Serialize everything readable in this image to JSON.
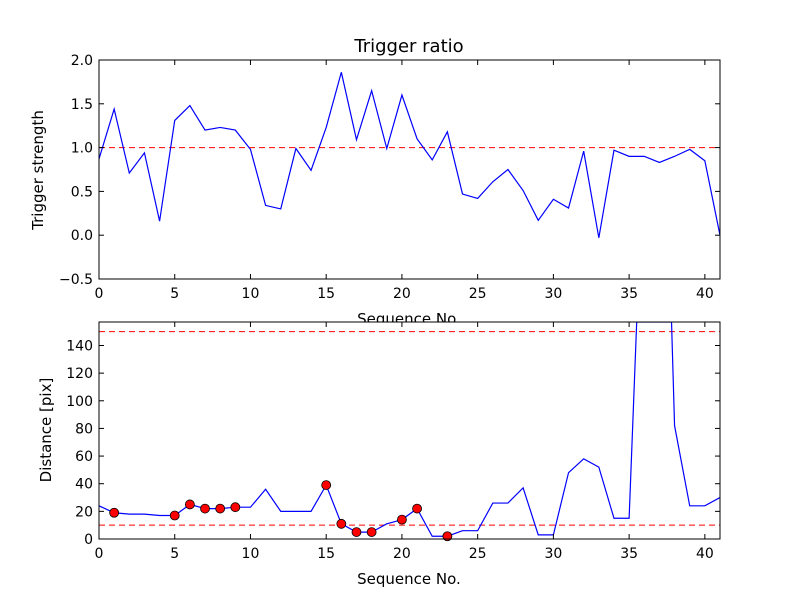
{
  "chart_data": [
    {
      "type": "line",
      "title": "Trigger ratio",
      "xlabel": "Sequence No.",
      "ylabel": "Trigger strength",
      "xlim": [
        0,
        41
      ],
      "ylim": [
        -0.5,
        2.0
      ],
      "xticks": [
        "0",
        "5",
        "10",
        "15",
        "20",
        "25",
        "30",
        "35",
        "40"
      ],
      "yticks": [
        "−0.5",
        "0.0",
        "0.5",
        "1.0",
        "1.5",
        "2.0"
      ],
      "threshold": 1.0,
      "line_color": "#0000ff",
      "threshold_color": "#ff0000",
      "series": [
        {
          "x": [
            0,
            1,
            2,
            3,
            4,
            5,
            6,
            7,
            8,
            9,
            10,
            11,
            12,
            13,
            14,
            15,
            16,
            17,
            18,
            19,
            20,
            21,
            22,
            23,
            24,
            25,
            26,
            27,
            28,
            29,
            30,
            31,
            32,
            33,
            34,
            35,
            36,
            37,
            38,
            39,
            40,
            41
          ],
          "values": [
            0.87,
            1.44,
            0.71,
            0.94,
            0.16,
            1.31,
            1.48,
            1.2,
            1.23,
            1.2,
            0.98,
            0.34,
            0.3,
            0.99,
            0.74,
            1.23,
            1.86,
            1.09,
            1.65,
            0.99,
            1.6,
            1.1,
            0.86,
            1.18,
            0.47,
            0.42,
            0.61,
            0.75,
            0.51,
            0.17,
            0.41,
            0.31,
            0.96,
            -0.03,
            0.97,
            0.9,
            0.9,
            0.83,
            0.9,
            0.98,
            0.85,
            0.0
          ]
        }
      ]
    },
    {
      "type": "line",
      "title": "",
      "xlabel": "Sequence No.",
      "ylabel": "Distance [pix]",
      "xlim": [
        0,
        41
      ],
      "ylim": [
        0,
        157
      ],
      "xticks": [
        "0",
        "5",
        "10",
        "15",
        "20",
        "25",
        "30",
        "35",
        "40"
      ],
      "yticks": [
        "0",
        "20",
        "40",
        "60",
        "80",
        "100",
        "120",
        "140"
      ],
      "thresholds": [
        10,
        150
      ],
      "line_color": "#0000ff",
      "threshold_color": "#ff0000",
      "marker_color": "#ff0000",
      "series": [
        {
          "x": [
            0,
            1,
            2,
            3,
            4,
            5,
            6,
            7,
            8,
            9,
            10,
            11,
            12,
            13,
            14,
            15,
            16,
            17,
            18,
            19,
            20,
            21,
            22,
            23,
            24,
            25,
            26,
            27,
            28,
            29,
            30,
            31,
            32,
            33,
            34,
            35,
            35.5,
            37.8,
            38,
            39,
            40,
            41
          ],
          "values": [
            24,
            19,
            18,
            18,
            17,
            17,
            25,
            22,
            22,
            23,
            23,
            36,
            20,
            20,
            20,
            39,
            11,
            5,
            5,
            11,
            14,
            22,
            2,
            2,
            6,
            6,
            26,
            26,
            37,
            3,
            3,
            48,
            58,
            52,
            15,
            15,
            157,
            157,
            82,
            24,
            24,
            30
          ]
        }
      ],
      "highlighted_points": {
        "x": [
          1,
          5,
          6,
          7,
          8,
          9,
          15,
          16,
          17,
          18,
          20,
          21,
          23
        ],
        "values": [
          19,
          17,
          25,
          22,
          22,
          23,
          39,
          11,
          5,
          5,
          14,
          22,
          2
        ]
      }
    }
  ]
}
